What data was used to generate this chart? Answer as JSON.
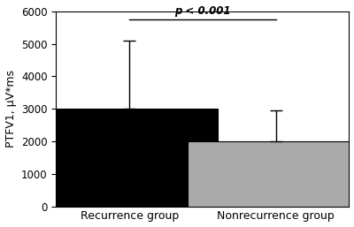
{
  "categories": [
    "Recurrence group",
    "Nonrecurrence group"
  ],
  "values": [
    3000,
    2000
  ],
  "errors_upper": [
    2100,
    950
  ],
  "bar_colors": [
    "#000000",
    "#aaaaaa"
  ],
  "ylabel": "PTFV1, μV*ms",
  "ylim": [
    0,
    6000
  ],
  "yticks": [
    0,
    1000,
    2000,
    3000,
    4000,
    5000,
    6000
  ],
  "sig_label": "p < 0.001",
  "background_color": "#ffffff",
  "bar_width": 0.6,
  "figsize": [
    4.0,
    2.57
  ],
  "dpi": 100,
  "x_positions": [
    0.25,
    0.75
  ],
  "xlim": [
    0.0,
    1.0
  ]
}
